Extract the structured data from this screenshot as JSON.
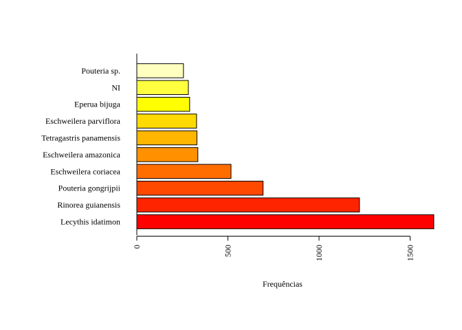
{
  "chart_data": {
    "type": "bar",
    "orientation": "horizontal",
    "title": "",
    "xlabel": "Frequências",
    "ylabel": "",
    "xlim": [
      0,
      1630
    ],
    "xticks": [
      0,
      500,
      1000,
      1500
    ],
    "xtick_labels": [
      "0",
      "500",
      "1000",
      "1500"
    ],
    "grid": false,
    "categories": [
      "Lecythis idatimon",
      "Rinorea guianensis",
      "Pouteria gongrijpii",
      "Eschweilera coriacea",
      "Eschweilera amazonica",
      "Tetragastris panamensis",
      "Eschweilera parviflora",
      "Eperua bijuga",
      "NI",
      "Pouteria sp."
    ],
    "values": [
      1630,
      1222,
      693,
      517,
      335,
      330,
      328,
      290,
      283,
      256
    ],
    "colors": [
      "#ff0000",
      "#ff2400",
      "#ff4800",
      "#ff6d00",
      "#ff9100",
      "#ffb600",
      "#ffda00",
      "#ffff00",
      "#ffff40",
      "#ffffbf"
    ]
  }
}
